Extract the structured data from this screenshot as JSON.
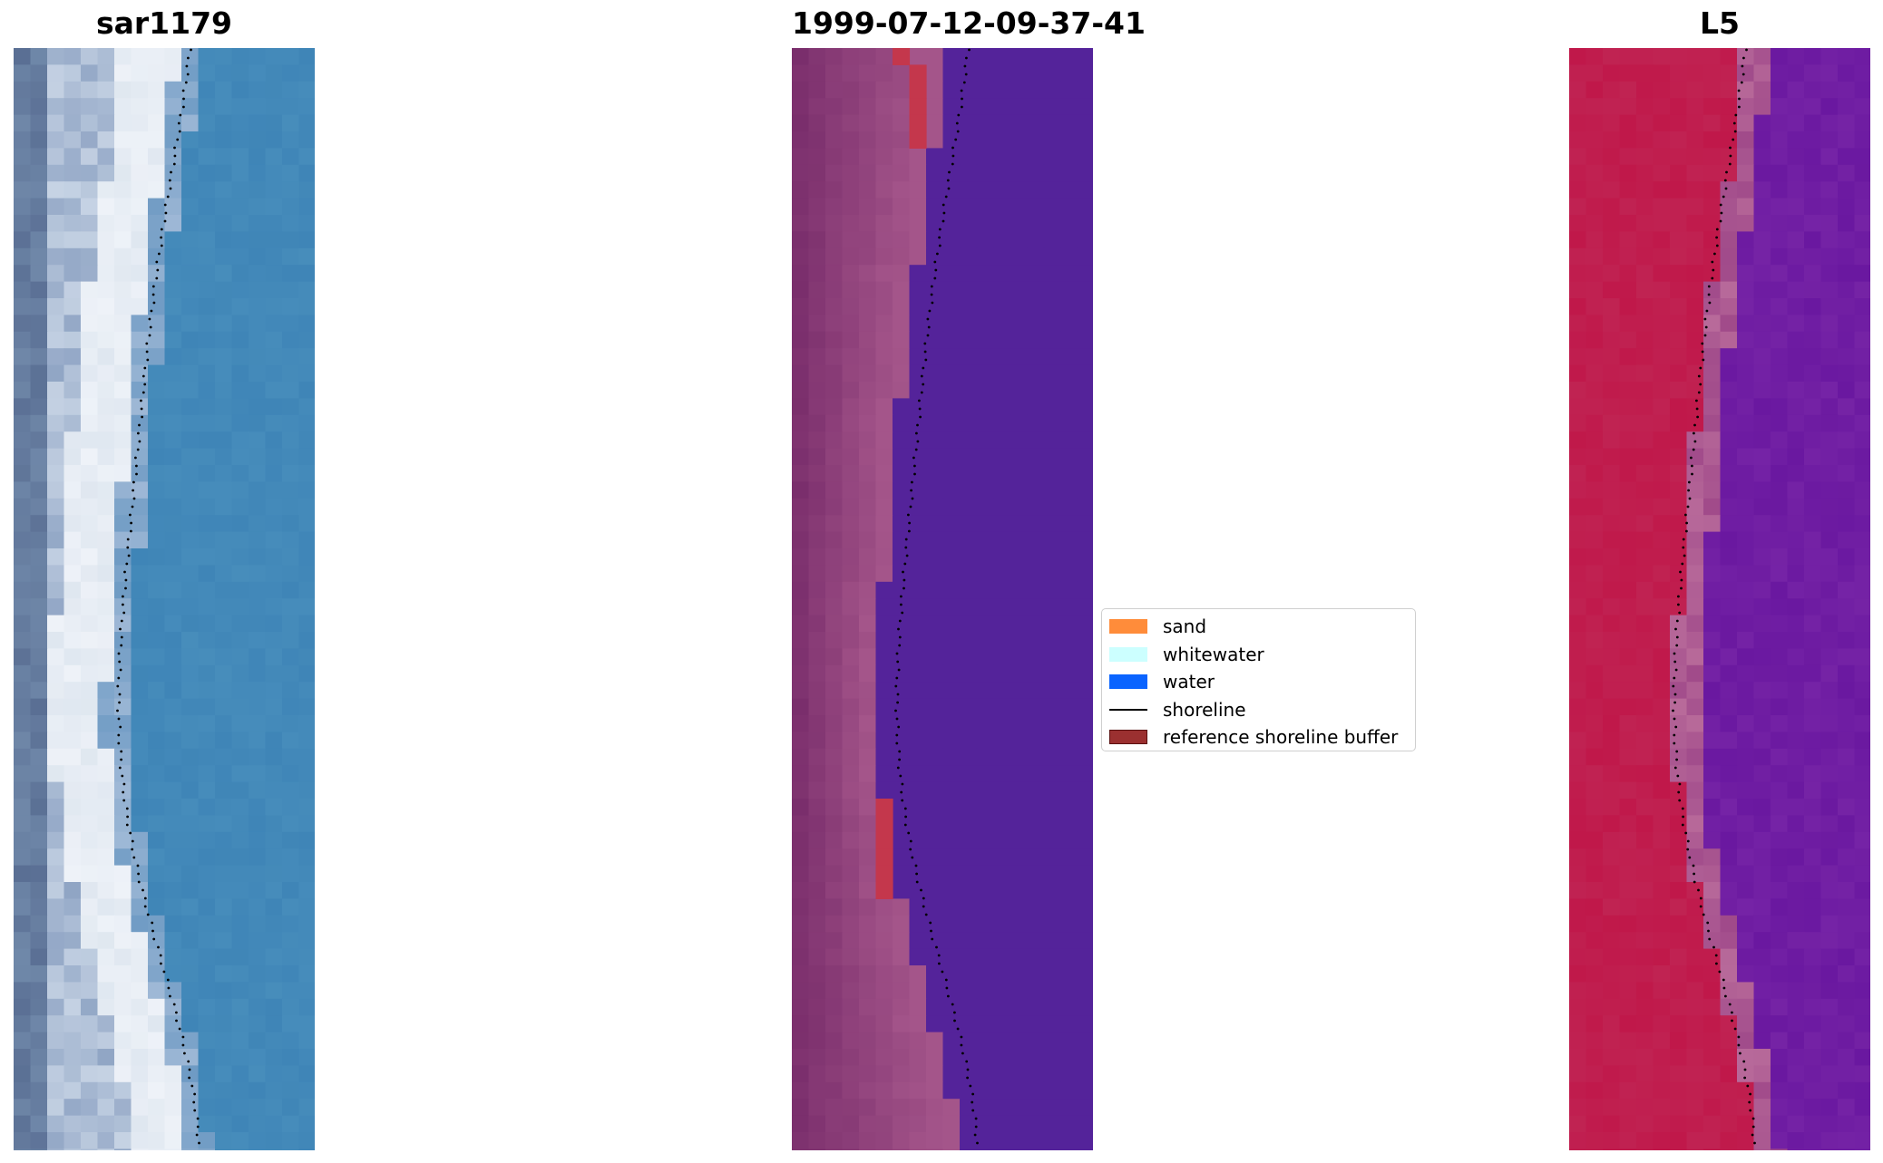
{
  "panels": [
    {
      "title": "sar1179"
    },
    {
      "title": "1999-07-12-09-37-41"
    },
    {
      "title": "L5"
    }
  ],
  "legend": {
    "items": [
      {
        "label": "sand",
        "kind": "patch",
        "color": "#ff8c3a"
      },
      {
        "label": "whitewater",
        "kind": "patch",
        "color": "#ccffff"
      },
      {
        "label": "water",
        "kind": "patch",
        "color": "#0a64ff"
      },
      {
        "label": "shoreline",
        "kind": "line",
        "color": "#000000"
      },
      {
        "label": "reference shoreline buffer",
        "kind": "patch",
        "color": "#9b3030",
        "edge": "#5a1010"
      }
    ]
  },
  "colors": {
    "rgb_water": "#3f85b7",
    "rgb_surf": "#eef2f8",
    "class_water": "#54239a",
    "class_land": "#a4558a",
    "class_buffer": "#c4374c",
    "mndwi_land": "#c0184a",
    "mndwi_water": "#6a18a0",
    "shoreline": "#000000"
  }
}
